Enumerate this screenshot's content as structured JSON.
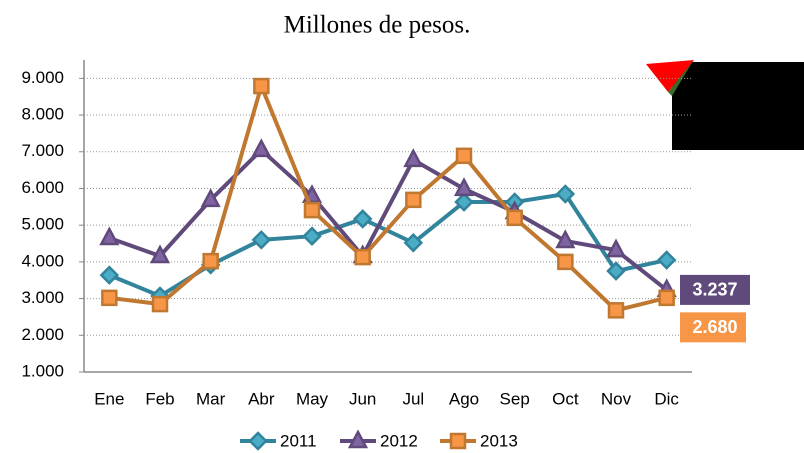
{
  "chart_data": {
    "type": "line",
    "title": "Millones de pesos.",
    "categories": [
      "Ene",
      "Feb",
      "Mar",
      "Abr",
      "May",
      "Jun",
      "Jul",
      "Ago",
      "Sep",
      "Oct",
      "Nov",
      "Dic"
    ],
    "series": [
      {
        "name": "2011",
        "color": "#31849b",
        "marker": "diamond",
        "values": [
          3640,
          3070,
          3920,
          4600,
          4700,
          5170,
          4520,
          5630,
          5630,
          5850,
          3750,
          4050
        ]
      },
      {
        "name": "2012",
        "color": "#604a7b",
        "marker": "triangle",
        "values": [
          4650,
          4160,
          5690,
          7050,
          5800,
          4160,
          6780,
          5990,
          5360,
          4570,
          4320,
          3237
        ],
        "value_labels": [
          null,
          null,
          null,
          null,
          null,
          null,
          null,
          null,
          null,
          null,
          null,
          "3.237"
        ]
      },
      {
        "name": "2013",
        "color": "#c0772f",
        "marker": "square",
        "values": [
          3020,
          2850,
          4020,
          8790,
          5410,
          4130,
          5690,
          6890,
          5200,
          4000,
          2680,
          3020
        ],
        "value_labels": [
          null,
          null,
          null,
          null,
          null,
          null,
          null,
          null,
          null,
          null,
          "2.680",
          null
        ]
      }
    ],
    "ylim": [
      1000,
      9500
    ],
    "yticks": [
      {
        "value": 1000,
        "label": "1.000"
      },
      {
        "value": 2000,
        "label": "2.000"
      },
      {
        "value": 3000,
        "label": "3.000"
      },
      {
        "value": 4000,
        "label": "4.000"
      },
      {
        "value": 5000,
        "label": "5.000"
      },
      {
        "value": 6000,
        "label": "6.000"
      },
      {
        "value": 7000,
        "label": "7.000"
      },
      {
        "value": 8000,
        "label": "8.000"
      },
      {
        "value": 9000,
        "label": "9.000"
      }
    ],
    "grid": true,
    "legend": "bottom"
  }
}
